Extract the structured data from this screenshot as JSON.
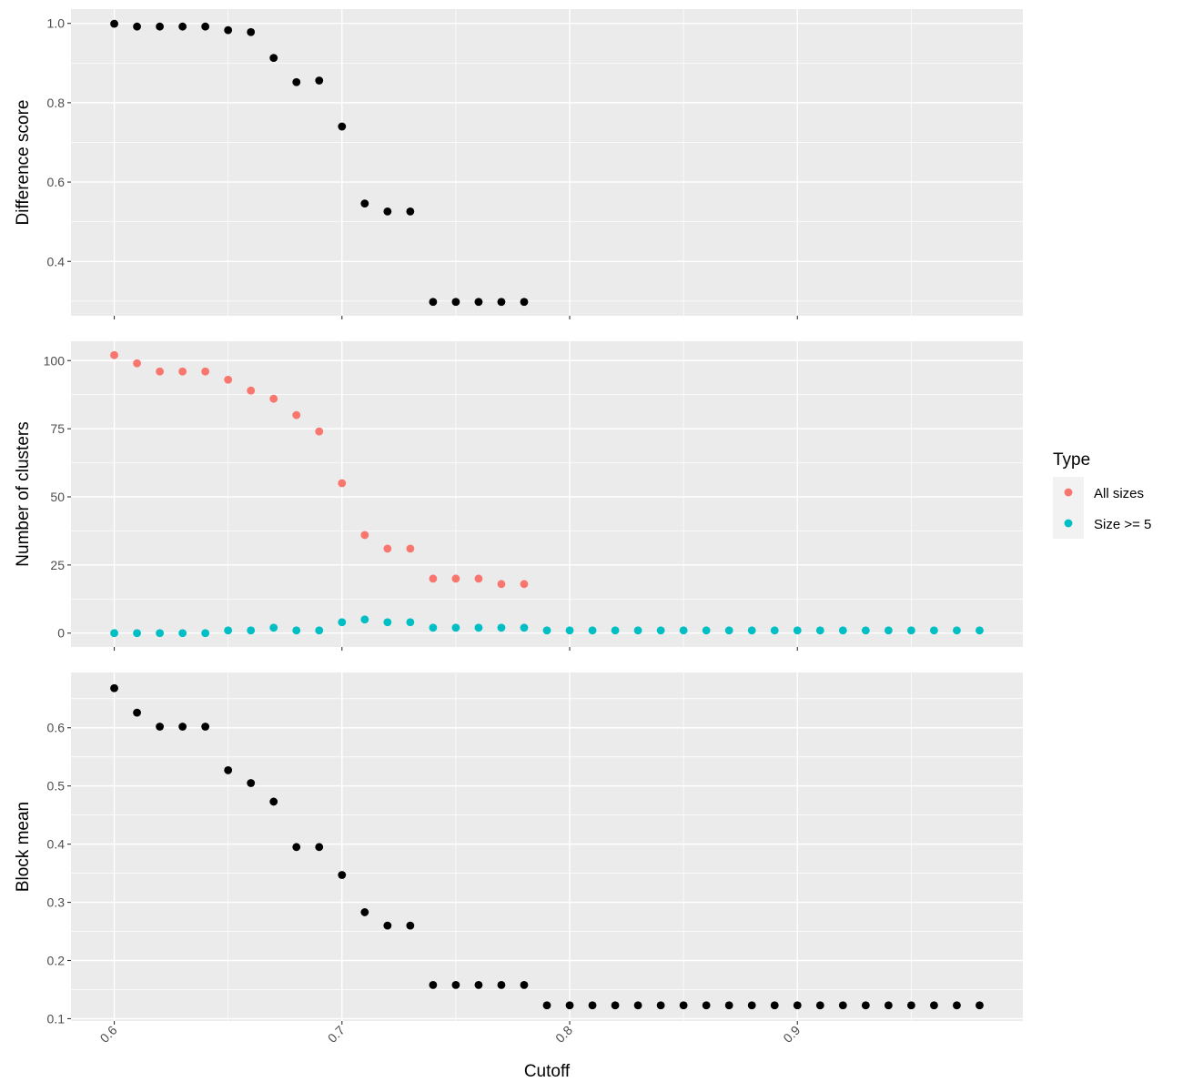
{
  "chart_data": {
    "type": "scatter",
    "x_label": "Cutoff",
    "x_ticks": [
      0.6,
      0.7,
      0.8,
      0.9
    ],
    "x_tick_labels": [
      "0.6",
      "0.7",
      "0.8",
      "0.9"
    ],
    "xlim": [
      0.581,
      0.999
    ],
    "grid": true,
    "legend": {
      "title": "Type",
      "placement": "right",
      "entries": [
        {
          "label": "All sizes",
          "color": "#F8766D"
        },
        {
          "label": "Size >= 5",
          "color": "#00BFC4"
        }
      ]
    },
    "panels": [
      {
        "ylabel": "Difference score",
        "ylim": [
          0.263,
          1.036
        ],
        "y_ticks": [
          0.4,
          0.6,
          0.8,
          1.0
        ],
        "y_tick_labels": [
          "0.4",
          "0.6",
          "0.8",
          "1.0"
        ],
        "series": [
          {
            "color": "#000000",
            "x": [
              0.6,
              0.61,
              0.62,
              0.63,
              0.64,
              0.65,
              0.66,
              0.67,
              0.68,
              0.69,
              0.7,
              0.71,
              0.72,
              0.73,
              0.74,
              0.75,
              0.76,
              0.77,
              0.78
            ],
            "y": [
              0.999,
              0.992,
              0.992,
              0.992,
              0.992,
              0.983,
              0.978,
              0.913,
              0.852,
              0.856,
              0.74,
              0.546,
              0.526,
              0.526,
              0.298,
              0.298,
              0.298,
              0.298,
              0.298
            ]
          }
        ]
      },
      {
        "ylabel": "Number of clusters",
        "ylim": [
          -5.1,
          107.1
        ],
        "y_ticks": [
          0,
          25,
          50,
          75,
          100
        ],
        "y_tick_labels": [
          "0",
          "25",
          "50",
          "75",
          "100"
        ],
        "series": [
          {
            "name": "All sizes",
            "color": "#F8766D",
            "x": [
              0.6,
              0.61,
              0.62,
              0.63,
              0.64,
              0.65,
              0.66,
              0.67,
              0.68,
              0.69,
              0.7,
              0.71,
              0.72,
              0.73,
              0.74,
              0.75,
              0.76,
              0.77,
              0.78
            ],
            "y": [
              102,
              99,
              96,
              96,
              96,
              93,
              89,
              86,
              80,
              74,
              55,
              36,
              31,
              31,
              20,
              20,
              20,
              18,
              18
            ]
          },
          {
            "name": "Size >= 5",
            "color": "#00BFC4",
            "x": [
              0.6,
              0.61,
              0.62,
              0.63,
              0.64,
              0.65,
              0.66,
              0.67,
              0.68,
              0.69,
              0.7,
              0.71,
              0.72,
              0.73,
              0.74,
              0.75,
              0.76,
              0.77,
              0.78,
              0.79,
              0.8,
              0.81,
              0.82,
              0.83,
              0.84,
              0.85,
              0.86,
              0.87,
              0.88,
              0.89,
              0.9,
              0.91,
              0.92,
              0.93,
              0.94,
              0.95,
              0.96,
              0.97,
              0.98
            ],
            "y": [
              0,
              0,
              0,
              0,
              0,
              1,
              1,
              2,
              1,
              1,
              4,
              5,
              4,
              4,
              2,
              2,
              2,
              2,
              2,
              1,
              1,
              1,
              1,
              1,
              1,
              1,
              1,
              1,
              1,
              1,
              1,
              1,
              1,
              1,
              1,
              1,
              1,
              1,
              1
            ]
          }
        ]
      },
      {
        "ylabel": "Block mean",
        "ylim": [
          0.096,
          0.695
        ],
        "y_ticks": [
          0.1,
          0.2,
          0.3,
          0.4,
          0.5,
          0.6
        ],
        "y_tick_labels": [
          "0.1",
          "0.2",
          "0.3",
          "0.4",
          "0.5",
          "0.6"
        ],
        "series": [
          {
            "color": "#000000",
            "x": [
              0.6,
              0.61,
              0.62,
              0.63,
              0.64,
              0.65,
              0.66,
              0.67,
              0.68,
              0.69,
              0.7,
              0.71,
              0.72,
              0.73,
              0.74,
              0.75,
              0.76,
              0.77,
              0.78,
              0.79,
              0.8,
              0.81,
              0.82,
              0.83,
              0.84,
              0.85,
              0.86,
              0.87,
              0.88,
              0.89,
              0.9,
              0.91,
              0.92,
              0.93,
              0.94,
              0.95,
              0.96,
              0.97,
              0.98
            ],
            "y": [
              0.668,
              0.626,
              0.602,
              0.602,
              0.602,
              0.527,
              0.505,
              0.473,
              0.395,
              0.395,
              0.347,
              0.283,
              0.26,
              0.26,
              0.158,
              0.158,
              0.158,
              0.158,
              0.158,
              0.123,
              0.123,
              0.123,
              0.123,
              0.123,
              0.123,
              0.123,
              0.123,
              0.123,
              0.123,
              0.123,
              0.123,
              0.123,
              0.123,
              0.123,
              0.123,
              0.123,
              0.123,
              0.123,
              0.123
            ]
          }
        ]
      }
    ]
  }
}
